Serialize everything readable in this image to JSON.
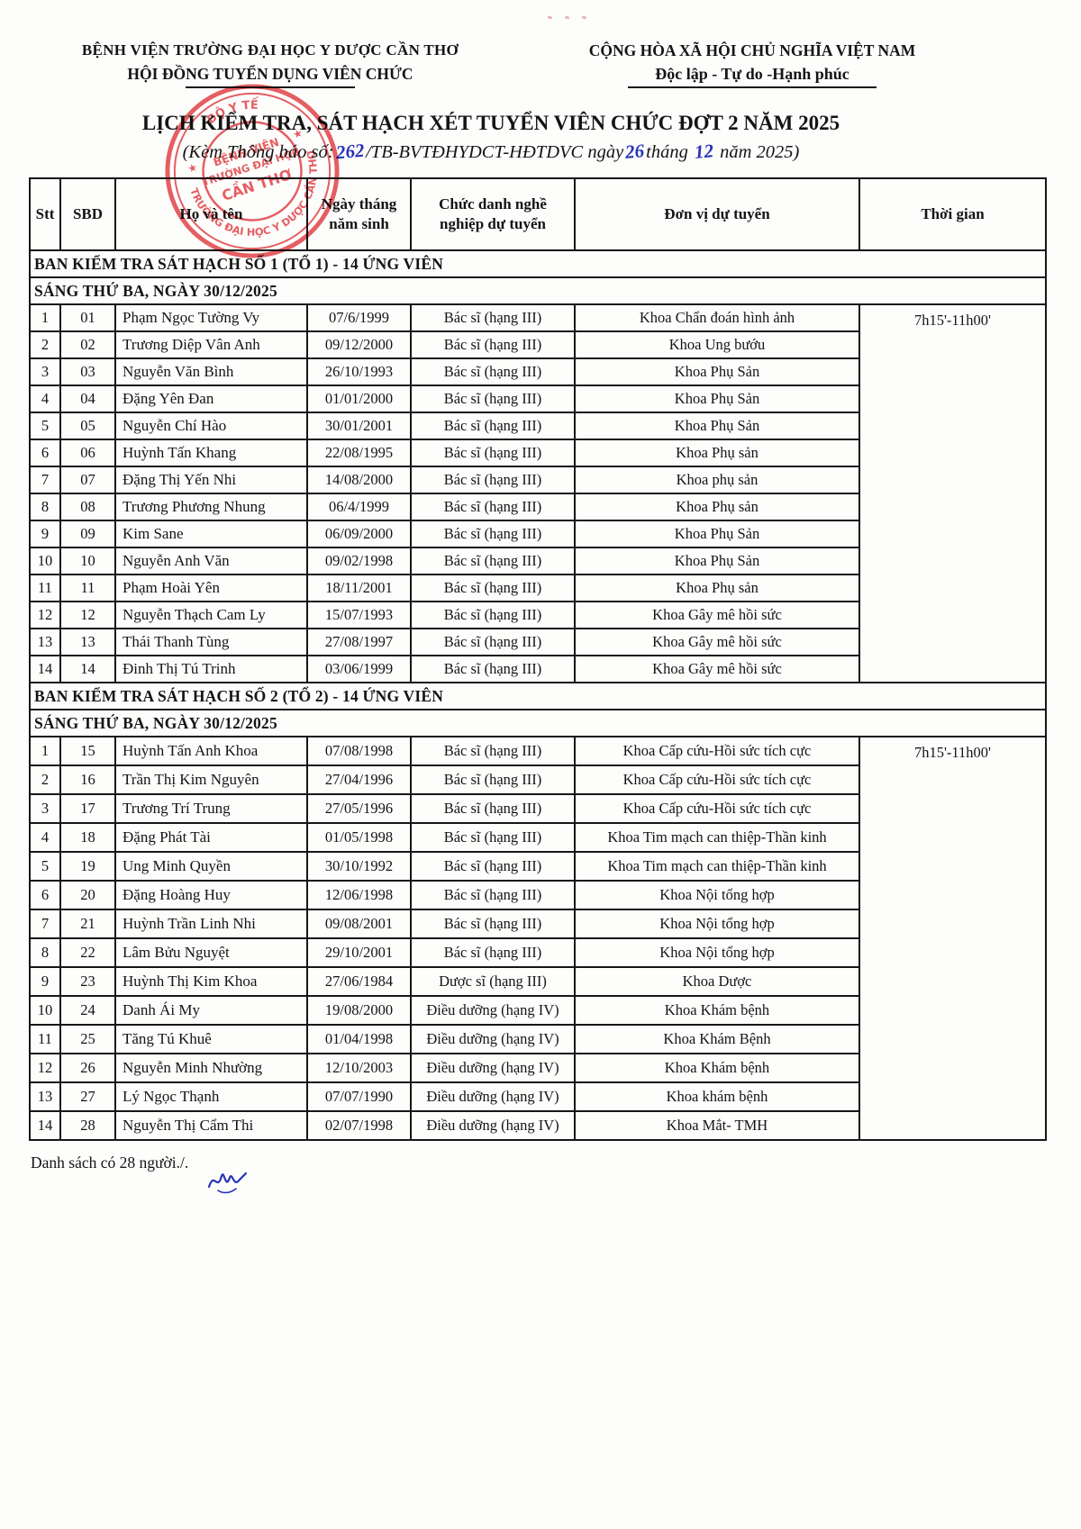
{
  "colors": {
    "stamp_red": "#e23b40",
    "ink_blue": "#2733b8",
    "text": "#141414"
  },
  "header": {
    "org_line1": "BỆNH VIỆN TRƯỜNG ĐẠI HỌC Y DƯỢC CẦN THƠ",
    "org_line2": "HỘI ĐỒNG TUYỂN DỤNG VIÊN CHỨC",
    "national_line1": "CỘNG HÒA XÃ HỘI CHỦ NGHĨA VIỆT NAM",
    "national_line2": "Độc lập - Tự do -Hạnh phúc"
  },
  "title": "LỊCH KIỂM TRA, SÁT HẠCH XÉT TUYỂN VIÊN CHỨC ĐỢT 2 NĂM 2025",
  "subtitle": {
    "prefix": "(Kèm Thông báo số:",
    "number": "262",
    "mid1": "/TB-BVTĐHYDCT-HĐTDVC ngày",
    "day": "26",
    "mid2": "tháng",
    "month": "12",
    "suffix": "năm 2025)"
  },
  "stamp": {
    "ring_top": "BỘ Y TẾ",
    "ring_bottom": "TRƯỜNG ĐẠI HỌC Y DƯỢC CẦN THƠ",
    "center_line1": "BỆNH VIỆN",
    "center_line2": "TRƯỜNG ĐẠI HỌC",
    "center_line3": "CẦN THƠ",
    "star": "★"
  },
  "table": {
    "columns": [
      "Stt",
      "SBD",
      "Họ và tên",
      "Ngày tháng\nnăm sinh",
      "Chức danh nghề\nnghiệp dự tuyển",
      "Đơn vị dự tuyển",
      "Thời gian"
    ],
    "sections": [
      {
        "title": "BAN KIỂM TRA SÁT HẠCH SỐ 1 (TỔ 1) - 14 ỨNG VIÊN",
        "session": "SÁNG THỨ BA, NGÀY 30/12/2025",
        "time": "7h15'-11h00'",
        "rows": [
          [
            "1",
            "01",
            "Phạm Ngọc Tường Vy",
            "07/6/1999",
            "Bác sĩ (hạng III)",
            "Khoa Chẩn đoán hình ảnh"
          ],
          [
            "2",
            "02",
            "Trương Diệp Vân Anh",
            "09/12/2000",
            "Bác sĩ (hạng III)",
            "Khoa Ung bướu"
          ],
          [
            "3",
            "03",
            "Nguyễn Văn Bình",
            "26/10/1993",
            "Bác sĩ (hạng III)",
            "Khoa Phụ Sản"
          ],
          [
            "4",
            "04",
            "Đặng Yên Đan",
            "01/01/2000",
            "Bác sĩ (hạng III)",
            "Khoa Phụ Sản"
          ],
          [
            "5",
            "05",
            "Nguyễn Chí Hào",
            "30/01/2001",
            "Bác sĩ (hạng III)",
            "Khoa Phụ Sản"
          ],
          [
            "6",
            "06",
            "Huỳnh Tấn Khang",
            "22/08/1995",
            "Bác sĩ (hạng III)",
            "Khoa Phụ sản"
          ],
          [
            "7",
            "07",
            "Đặng Thị Yến Nhi",
            "14/08/2000",
            "Bác sĩ (hạng III)",
            "Khoa phụ sản"
          ],
          [
            "8",
            "08",
            "Trương Phương Nhung",
            "06/4/1999",
            "Bác sĩ (hạng III)",
            "Khoa Phụ sản"
          ],
          [
            "9",
            "09",
            "Kim Sane",
            "06/09/2000",
            "Bác sĩ (hạng III)",
            "Khoa Phụ Sản"
          ],
          [
            "10",
            "10",
            "Nguyễn Anh Văn",
            "09/02/1998",
            "Bác sĩ (hạng III)",
            "Khoa Phụ Sản"
          ],
          [
            "11",
            "11",
            "Phạm Hoài Yên",
            "18/11/2001",
            "Bác sĩ (hạng III)",
            "Khoa Phụ sản"
          ],
          [
            "12",
            "12",
            "Nguyễn Thạch Cam Ly",
            "15/07/1993",
            "Bác sĩ (hạng III)",
            "Khoa Gây mê hồi sức"
          ],
          [
            "13",
            "13",
            "Thái Thanh Tùng",
            "27/08/1997",
            "Bác sĩ (hạng III)",
            "Khoa Gây mê hồi sức"
          ],
          [
            "14",
            "14",
            "Đinh Thị Tú Trinh",
            "03/06/1999",
            "Bác sĩ (hạng III)",
            "Khoa Gây mê hồi sức"
          ]
        ]
      },
      {
        "title": "BAN KIỂM TRA SÁT HẠCH SỐ 2 (TỔ 2) - 14 ỨNG VIÊN",
        "session": "SÁNG THỨ BA, NGÀY 30/12/2025",
        "time": "7h15'-11h00'",
        "rows": [
          [
            "1",
            "15",
            "Huỳnh Tấn Anh Khoa",
            "07/08/1998",
            "Bác sĩ (hạng III)",
            "Khoa Cấp cứu-Hồi sức tích cực"
          ],
          [
            "2",
            "16",
            "Trần Thị Kim Nguyên",
            "27/04/1996",
            "Bác sĩ (hạng III)",
            "Khoa Cấp cứu-Hồi sức tích cực"
          ],
          [
            "3",
            "17",
            "Trương Trí Trung",
            "27/05/1996",
            "Bác sĩ (hạng III)",
            "Khoa Cấp cứu-Hồi sức tích cực"
          ],
          [
            "4",
            "18",
            "Đặng Phát Tài",
            "01/05/1998",
            "Bác sĩ (hạng III)",
            "Khoa Tim mạch can thiệp-Thần kinh"
          ],
          [
            "5",
            "19",
            "Ung Minh Quyền",
            "30/10/1992",
            "Bác sĩ (hạng III)",
            "Khoa Tim mạch can thiệp-Thần kinh"
          ],
          [
            "6",
            "20",
            "Đặng Hoàng Huy",
            "12/06/1998",
            "Bác sĩ (hạng III)",
            "Khoa Nội tổng hợp"
          ],
          [
            "7",
            "21",
            "Huỳnh Trần Linh Nhi",
            "09/08/2001",
            "Bác sĩ (hạng III)",
            "Khoa Nội tổng hợp"
          ],
          [
            "8",
            "22",
            "Lâm Bửu Nguyệt",
            "29/10/2001",
            "Bác sĩ (hạng III)",
            "Khoa Nội tổng hợp"
          ],
          [
            "9",
            "23",
            "Huỳnh Thị Kim Khoa",
            "27/06/1984",
            "Dược sĩ (hạng III)",
            "Khoa Dược"
          ],
          [
            "10",
            "24",
            "Danh Ái My",
            "19/08/2000",
            "Điều dưỡng (hạng IV)",
            "Khoa Khám bệnh"
          ],
          [
            "11",
            "25",
            "Tăng Tú Khuê",
            "01/04/1998",
            "Điều dưỡng (hạng IV)",
            "Khoa Khám Bệnh"
          ],
          [
            "12",
            "26",
            "Nguyễn Minh Nhường",
            "12/10/2003",
            "Điều dưỡng (hạng IV)",
            "Khoa Khám bệnh"
          ],
          [
            "13",
            "27",
            "Lý Ngọc Thạnh",
            "07/07/1990",
            "Điều dưỡng (hạng IV)",
            "Khoa khám bệnh"
          ],
          [
            "14",
            "28",
            "Nguyễn Thị Cẩm Thi",
            "02/07/1998",
            "Điều dưỡng (hạng IV)",
            "Khoa Mắt- TMH"
          ]
        ]
      }
    ]
  },
  "footer": {
    "note": "Danh sách có 28 người./."
  }
}
